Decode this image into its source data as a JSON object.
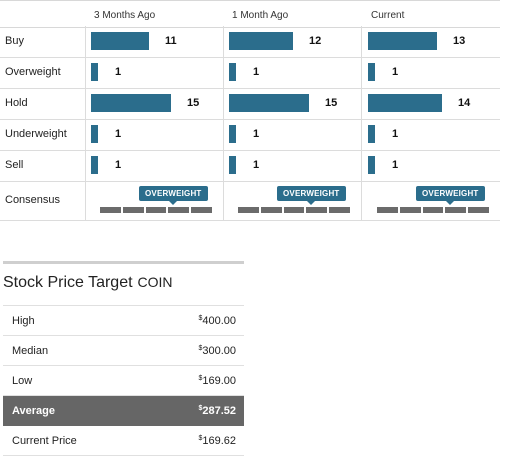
{
  "ratings": {
    "columns": [
      "3 Months Ago",
      "1 Month Ago",
      "Current"
    ],
    "rows": [
      {
        "label": "Buy",
        "values": [
          11,
          12,
          13
        ]
      },
      {
        "label": "Overweight",
        "values": [
          1,
          1,
          1
        ]
      },
      {
        "label": "Hold",
        "values": [
          15,
          15,
          14
        ]
      },
      {
        "label": "Underweight",
        "values": [
          1,
          1,
          1
        ]
      },
      {
        "label": "Sell",
        "values": [
          1,
          1,
          1
        ]
      }
    ],
    "consensus": {
      "label": "Consensus",
      "values": [
        "OVERWEIGHT",
        "OVERWEIGHT",
        "OVERWEIGHT"
      ]
    },
    "bar_color": "#2b6d8c"
  },
  "price_target": {
    "title": "Stock Price Target",
    "ticker": "COIN",
    "currency_symbol": "$",
    "rows": [
      {
        "label": "High",
        "value": "400.00"
      },
      {
        "label": "Median",
        "value": "300.00"
      },
      {
        "label": "Low",
        "value": "169.00"
      },
      {
        "label": "Average",
        "value": "287.52"
      },
      {
        "label": "Current Price",
        "value": "169.62"
      }
    ],
    "highlight_color": "#666666"
  }
}
